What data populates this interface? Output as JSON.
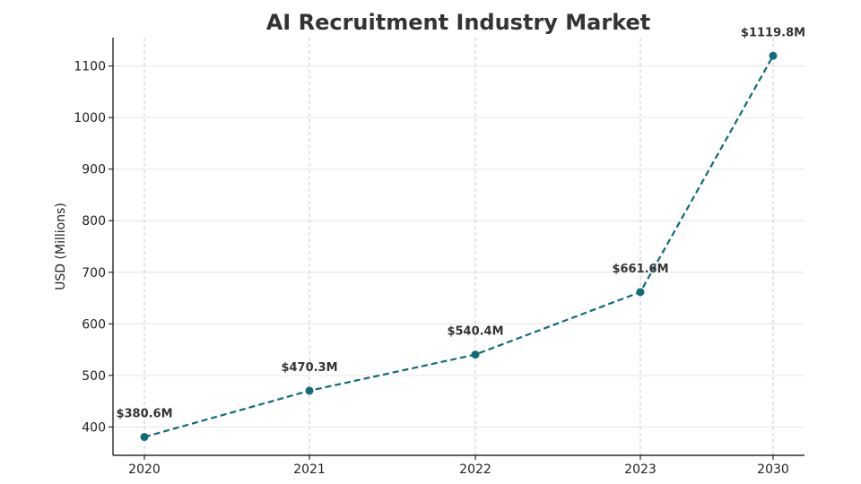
{
  "chart_data": {
    "type": "line",
    "title": "AI Recruitment Industry Market",
    "xlabel": "",
    "ylabel": "USD (Millions)",
    "categories": [
      "2020",
      "2021",
      "2022",
      "2023",
      "2030"
    ],
    "x": [
      2020,
      2021,
      2022,
      2023,
      2030
    ],
    "series": [
      {
        "values": [
          380.6,
          470.3,
          540.4,
          661.6,
          1119.8
        ],
        "labels": [
          "$380.6M",
          "$470.3M",
          "$540.4M",
          "$661.6M",
          "$1119.8M"
        ],
        "color": "#116b78",
        "line_style": "dashed",
        "marker": "circle"
      }
    ],
    "ylim": [
      345,
      1155
    ],
    "yticks": [
      400,
      500,
      600,
      700,
      800,
      900,
      1000,
      1100
    ],
    "ytick_labels": [
      "400",
      "500",
      "600",
      "700",
      "800",
      "900",
      "1000",
      "1100"
    ],
    "grid": {
      "vertical": "dashed",
      "horizontal": "solid-light"
    },
    "legend": "none"
  }
}
